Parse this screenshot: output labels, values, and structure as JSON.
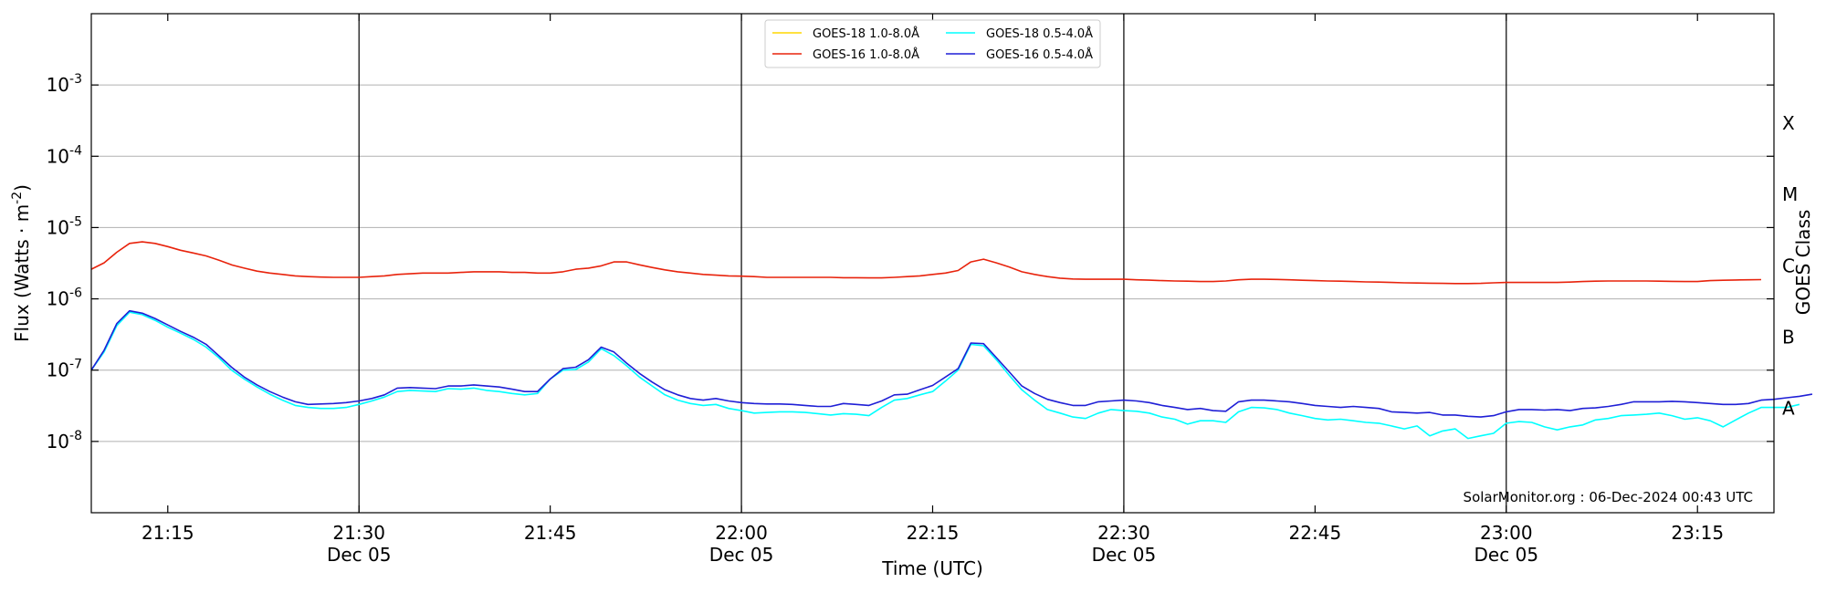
{
  "chart_data": {
    "type": "line",
    "xlabel": "Time (UTC)",
    "ylabel": "Flux (Watts · m",
    "ylabel_sup": "-2",
    "ylabel_close": ")",
    "right_label": "GOES Class",
    "credit": "SolarMonitor.org : 06-Dec-2024 00:43 UTC",
    "y_scale": "log",
    "ylim": [
      1e-09,
      0.01
    ],
    "xlim": [
      "21:09",
      "23:21"
    ],
    "grid": "horizontal",
    "legend_position": "top-center",
    "y_ticks": [
      {
        "value": 1e-08,
        "base": "10",
        "exp": "-8"
      },
      {
        "value": 1e-07,
        "base": "10",
        "exp": "-7"
      },
      {
        "value": 1e-06,
        "base": "10",
        "exp": "-6"
      },
      {
        "value": 1e-05,
        "base": "10",
        "exp": "-5"
      },
      {
        "value": 0.0001,
        "base": "10",
        "exp": "-4"
      },
      {
        "value": 0.001,
        "base": "10",
        "exp": "-3"
      }
    ],
    "x_ticks": [
      {
        "minute": 6,
        "label": "21:15",
        "sub": ""
      },
      {
        "minute": 21,
        "label": "21:30",
        "sub": "Dec 05"
      },
      {
        "minute": 36,
        "label": "21:45",
        "sub": ""
      },
      {
        "minute": 51,
        "label": "22:00",
        "sub": "Dec 05"
      },
      {
        "minute": 66,
        "label": "22:15",
        "sub": ""
      },
      {
        "minute": 81,
        "label": "22:30",
        "sub": "Dec 05"
      },
      {
        "minute": 96,
        "label": "22:45",
        "sub": ""
      },
      {
        "minute": 111,
        "label": "23:00",
        "sub": "Dec 05"
      },
      {
        "minute": 126,
        "label": "23:15",
        "sub": ""
      }
    ],
    "vlines_minutes": [
      21,
      51,
      81,
      111
    ],
    "goes_classes": [
      {
        "label": "A",
        "value": 3e-08
      },
      {
        "label": "B",
        "value": 3e-07
      },
      {
        "label": "C",
        "value": 3e-06
      },
      {
        "label": "M",
        "value": 3e-05
      },
      {
        "label": "X",
        "value": 0.0003
      }
    ],
    "x_start": "21:09",
    "x_step_minutes": 1,
    "series": [
      {
        "name": "GOES-18 1.0-8.0Å",
        "color": "#ffd700",
        "values": []
      },
      {
        "name": "GOES-16 1.0-8.0Å",
        "color": "#e8230c",
        "values": [
          2.6e-06,
          3.2e-06,
          4.5e-06,
          6e-06,
          6.3e-06,
          6e-06,
          5.4e-06,
          4.8e-06,
          4.4e-06,
          4e-06,
          3.5e-06,
          3e-06,
          2.7e-06,
          2.45e-06,
          2.3e-06,
          2.2e-06,
          2.1e-06,
          2.05e-06,
          2.02e-06,
          2e-06,
          2e-06,
          2e-06,
          2.05e-06,
          2.1e-06,
          2.2e-06,
          2.25e-06,
          2.3e-06,
          2.3e-06,
          2.3e-06,
          2.35e-06,
          2.4e-06,
          2.4e-06,
          2.4e-06,
          2.35e-06,
          2.35e-06,
          2.3e-06,
          2.3e-06,
          2.4e-06,
          2.6e-06,
          2.7e-06,
          2.9e-06,
          3.3e-06,
          3.3e-06,
          3e-06,
          2.75e-06,
          2.55e-06,
          2.4e-06,
          2.3e-06,
          2.2e-06,
          2.15e-06,
          2.1e-06,
          2.08e-06,
          2.05e-06,
          2e-06,
          2e-06,
          2e-06,
          2e-06,
          2e-06,
          2e-06,
          1.98e-06,
          1.98e-06,
          1.97e-06,
          1.97e-06,
          2e-06,
          2.05e-06,
          2.1e-06,
          2.2e-06,
          2.3e-06,
          2.5e-06,
          3.3e-06,
          3.6e-06,
          3.2e-06,
          2.8e-06,
          2.4e-06,
          2.2e-06,
          2.05e-06,
          1.95e-06,
          1.9e-06,
          1.88e-06,
          1.88e-06,
          1.88e-06,
          1.88e-06,
          1.85e-06,
          1.83e-06,
          1.8e-06,
          1.78e-06,
          1.77e-06,
          1.75e-06,
          1.75e-06,
          1.78e-06,
          1.85e-06,
          1.88e-06,
          1.88e-06,
          1.87e-06,
          1.85e-06,
          1.82e-06,
          1.8e-06,
          1.78e-06,
          1.77e-06,
          1.75e-06,
          1.73e-06,
          1.72e-06,
          1.7e-06,
          1.68e-06,
          1.67e-06,
          1.66e-06,
          1.65e-06,
          1.64e-06,
          1.64e-06,
          1.65e-06,
          1.68e-06,
          1.7e-06,
          1.7e-06,
          1.7e-06,
          1.7e-06,
          1.7e-06,
          1.72e-06,
          1.75e-06,
          1.77e-06,
          1.78e-06,
          1.78e-06,
          1.78e-06,
          1.78e-06,
          1.77e-06,
          1.76e-06,
          1.75e-06,
          1.75e-06,
          1.8e-06,
          1.82e-06,
          1.84e-06,
          1.85e-06,
          1.86e-06
        ]
      },
      {
        "name": "GOES-18 0.5-4.0Å",
        "color": "#00ffff",
        "values": [
          1e-07,
          1.8e-07,
          4.2e-07,
          6.5e-07,
          6e-07,
          5e-07,
          4e-07,
          3.3e-07,
          2.7e-07,
          2.1e-07,
          1.5e-07,
          1e-07,
          7.5e-08,
          5.8e-08,
          4.6e-08,
          3.8e-08,
          3.2e-08,
          3e-08,
          2.9e-08,
          2.9e-08,
          3e-08,
          3.3e-08,
          3.7e-08,
          4.2e-08,
          5e-08,
          5.2e-08,
          5.1e-08,
          5e-08,
          5.5e-08,
          5.4e-08,
          5.6e-08,
          5.2e-08,
          5e-08,
          4.7e-08,
          4.5e-08,
          4.7e-08,
          7.5e-08,
          1e-07,
          1.02e-07,
          1.3e-07,
          2e-07,
          1.6e-07,
          1.15e-07,
          8e-08,
          6e-08,
          4.5e-08,
          3.8e-08,
          3.4e-08,
          3.2e-08,
          3.3e-08,
          2.9e-08,
          2.7e-08,
          2.5e-08,
          2.55e-08,
          2.6e-08,
          2.6e-08,
          2.55e-08,
          2.45e-08,
          2.35e-08,
          2.45e-08,
          2.4e-08,
          2.3e-08,
          3e-08,
          3.8e-08,
          4e-08,
          4.5e-08,
          5e-08,
          7e-08,
          1e-07,
          2.3e-07,
          2.2e-07,
          1.4e-07,
          8.5e-08,
          5.3e-08,
          3.8e-08,
          2.8e-08,
          2.5e-08,
          2.2e-08,
          2.1e-08,
          2.5e-08,
          2.8e-08,
          2.7e-08,
          2.65e-08,
          2.5e-08,
          2.2e-08,
          2.05e-08,
          1.75e-08,
          1.95e-08,
          1.95e-08,
          1.85e-08,
          2.6e-08,
          3e-08,
          2.95e-08,
          2.8e-08,
          2.5e-08,
          2.3e-08,
          2.1e-08,
          2e-08,
          2.05e-08,
          1.95e-08,
          1.85e-08,
          1.8e-08,
          1.65e-08,
          1.5e-08,
          1.65e-08,
          1.2e-08,
          1.4e-08,
          1.5e-08,
          1.1e-08,
          1.2e-08,
          1.3e-08,
          1.8e-08,
          1.9e-08,
          1.85e-08,
          1.6e-08,
          1.45e-08,
          1.6e-08,
          1.7e-08,
          2e-08,
          2.1e-08,
          2.3e-08,
          2.35e-08,
          2.4e-08,
          2.5e-08,
          2.3e-08,
          2.05e-08,
          2.15e-08,
          1.95e-08,
          1.6e-08,
          2e-08,
          2.5e-08,
          3e-08,
          3e-08,
          3e-08,
          3.3e-08
        ]
      },
      {
        "name": "GOES-16 0.5-4.0Å",
        "color": "#1f1fd6",
        "values": [
          1e-07,
          1.9e-07,
          4.5e-07,
          6.8e-07,
          6.3e-07,
          5.3e-07,
          4.3e-07,
          3.5e-07,
          2.9e-07,
          2.3e-07,
          1.6e-07,
          1.1e-07,
          8e-08,
          6.2e-08,
          5e-08,
          4.2e-08,
          3.6e-08,
          3.3e-08,
          3.35e-08,
          3.4e-08,
          3.5e-08,
          3.7e-08,
          4e-08,
          4.5e-08,
          5.6e-08,
          5.7e-08,
          5.6e-08,
          5.5e-08,
          6e-08,
          6e-08,
          6.2e-08,
          6e-08,
          5.8e-08,
          5.4e-08,
          5e-08,
          5e-08,
          7.5e-08,
          1.05e-07,
          1.1e-07,
          1.4e-07,
          2.1e-07,
          1.8e-07,
          1.25e-07,
          9e-08,
          6.8e-08,
          5.3e-08,
          4.5e-08,
          4e-08,
          3.8e-08,
          4e-08,
          3.7e-08,
          3.5e-08,
          3.4e-08,
          3.35e-08,
          3.35e-08,
          3.3e-08,
          3.2e-08,
          3.1e-08,
          3.1e-08,
          3.4e-08,
          3.3e-08,
          3.2e-08,
          3.7e-08,
          4.5e-08,
          4.6e-08,
          5.3e-08,
          6.1e-08,
          8e-08,
          1.05e-07,
          2.4e-07,
          2.35e-07,
          1.5e-07,
          9.5e-08,
          6e-08,
          4.7e-08,
          3.9e-08,
          3.5e-08,
          3.2e-08,
          3.2e-08,
          3.6e-08,
          3.7e-08,
          3.8e-08,
          3.7e-08,
          3.5e-08,
          3.2e-08,
          3e-08,
          2.8e-08,
          2.9e-08,
          2.7e-08,
          2.65e-08,
          3.6e-08,
          3.8e-08,
          3.8e-08,
          3.7e-08,
          3.6e-08,
          3.4e-08,
          3.2e-08,
          3.1e-08,
          3e-08,
          3.1e-08,
          3e-08,
          2.9e-08,
          2.6e-08,
          2.55e-08,
          2.5e-08,
          2.55e-08,
          2.35e-08,
          2.35e-08,
          2.25e-08,
          2.2e-08,
          2.3e-08,
          2.6e-08,
          2.8e-08,
          2.8e-08,
          2.75e-08,
          2.8e-08,
          2.7e-08,
          2.9e-08,
          2.95e-08,
          3.1e-08,
          3.3e-08,
          3.6e-08,
          3.6e-08,
          3.6e-08,
          3.65e-08,
          3.6e-08,
          3.5e-08,
          3.4e-08,
          3.3e-08,
          3.3e-08,
          3.4e-08,
          3.8e-08,
          3.9e-08,
          4.1e-08,
          4.3e-08,
          4.6e-08
        ]
      }
    ]
  }
}
